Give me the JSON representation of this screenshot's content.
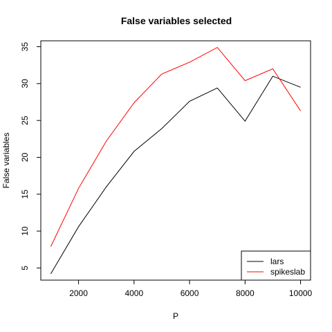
{
  "chart_data": {
    "type": "line",
    "title": "False variables selected",
    "xlabel": "P",
    "ylabel": "False variables",
    "x": [
      1000,
      2000,
      3000,
      4000,
      5000,
      6000,
      7000,
      8000,
      9000,
      10000
    ],
    "xlim": [
      640,
      10360
    ],
    "ylim": [
      3.35,
      35.8
    ],
    "xticks": [
      2000,
      4000,
      6000,
      8000,
      10000
    ],
    "yticks": [
      5,
      10,
      15,
      20,
      25,
      30,
      35
    ],
    "grid": false,
    "legend": "bottom-right",
    "series": [
      {
        "name": "lars",
        "color": "#000000",
        "values": [
          4.2,
          10.6,
          16.0,
          20.8,
          23.9,
          27.6,
          29.4,
          24.9,
          31.0,
          29.5
        ]
      },
      {
        "name": "spikeslab",
        "color": "#ff0000",
        "values": [
          7.9,
          15.8,
          22.2,
          27.4,
          31.3,
          32.9,
          34.9,
          30.4,
          32.0,
          26.3
        ]
      }
    ]
  }
}
